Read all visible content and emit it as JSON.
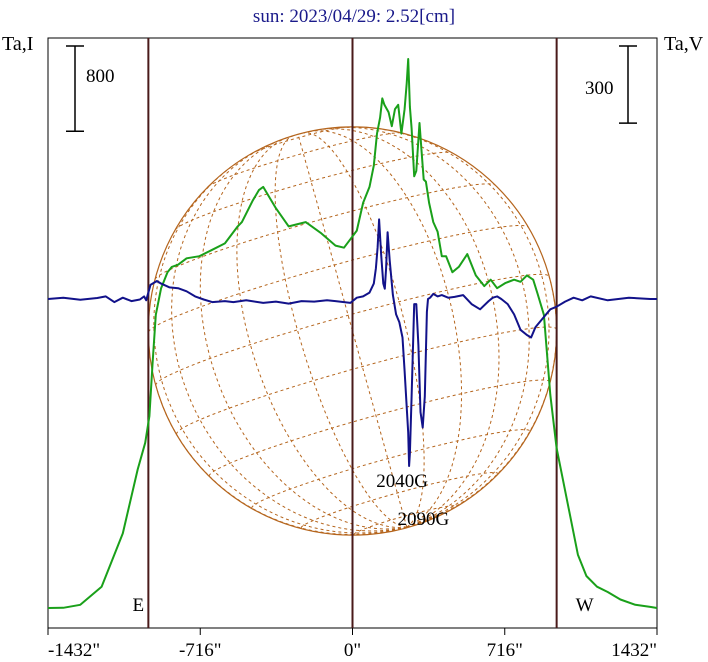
{
  "chart_data": {
    "type": "line",
    "title": "sun: 2023/04/29: 2.52[cm]",
    "left_label": "Ta,I",
    "right_label": "Ta,V",
    "xlim": [
      -1432,
      1432
    ],
    "x_ticks": [
      -1432,
      -716,
      0,
      716,
      1432
    ],
    "x_tick_labels": [
      "-1432\"",
      "-716\"",
      "0\"",
      "716\"",
      "1432\""
    ],
    "limb_markers": [
      {
        "label": "E",
        "x": -960
      },
      {
        "label": "W",
        "x": 960
      }
    ],
    "center_marker_x": 0,
    "scale_bars": [
      {
        "axis": "left",
        "label": "800",
        "value": 800
      },
      {
        "axis": "right",
        "label": "300",
        "value": 300
      }
    ],
    "disk": {
      "radius_arcsec": 960,
      "color": "#b5651d"
    },
    "annotations": [
      {
        "text": "2040G",
        "x": 290
      },
      {
        "text": "2090G",
        "x": 390
      }
    ],
    "series": [
      {
        "name": "Ta,I",
        "color": "#1aa01a",
        "x": [
          -1432,
          -1360,
          -1280,
          -1180,
          -1080,
          -1010,
          -975,
          -955,
          -940,
          -925,
          -900,
          -870,
          -850,
          -820,
          -780,
          -720,
          -660,
          -600,
          -540,
          -520,
          -470,
          -440,
          -420,
          -360,
          -300,
          -220,
          -150,
          -80,
          -40,
          -10,
          20,
          50,
          80,
          100,
          115,
          130,
          140,
          150,
          170,
          185,
          200,
          215,
          230,
          245,
          255,
          262,
          270,
          278,
          290,
          300,
          315,
          325,
          335,
          345,
          360,
          380,
          400,
          420,
          440,
          470,
          500,
          540,
          580,
          620,
          650,
          680,
          720,
          760,
          790,
          820,
          850,
          870,
          900,
          930,
          960,
          990,
          1020,
          1060,
          1100,
          1150,
          1200,
          1260,
          1330,
          1400,
          1432
        ],
        "values": [
          0,
          2,
          30,
          200,
          700,
          1300,
          1550,
          1800,
          2300,
          2750,
          3000,
          3150,
          3200,
          3220,
          3280,
          3300,
          3360,
          3420,
          3580,
          3620,
          3820,
          3920,
          3950,
          3750,
          3580,
          3620,
          3520,
          3400,
          3380,
          3460,
          3540,
          3800,
          3950,
          4150,
          4450,
          4600,
          4780,
          4720,
          4650,
          4520,
          4680,
          4720,
          4450,
          4680,
          4920,
          5150,
          4700,
          4500,
          4050,
          4100,
          4550,
          4280,
          4020,
          4000,
          3800,
          3620,
          3530,
          3300,
          3300,
          3150,
          3200,
          3320,
          3120,
          3020,
          3080,
          3000,
          3050,
          3080,
          3060,
          3120,
          3080,
          2950,
          2750,
          2000,
          1500,
          1200,
          900,
          500,
          300,
          200,
          150,
          80,
          30,
          10,
          0
        ]
      },
      {
        "name": "Ta,V",
        "color": "#12128a",
        "x": [
          -1432,
          -1360,
          -1280,
          -1200,
          -1160,
          -1120,
          -1080,
          -1040,
          -1000,
          -980,
          -970,
          -950,
          -920,
          -900,
          -860,
          -820,
          -780,
          -740,
          -700,
          -660,
          -600,
          -560,
          -500,
          -420,
          -360,
          -300,
          -240,
          -180,
          -120,
          -80,
          -40,
          -10,
          20,
          50,
          80,
          100,
          110,
          118,
          125,
          135,
          145,
          152,
          158,
          165,
          175,
          190,
          205,
          220,
          235,
          245,
          255,
          262,
          266,
          270,
          278,
          290,
          300,
          310,
          320,
          330,
          340,
          350,
          355,
          365,
          380,
          400,
          420,
          450,
          480,
          520,
          560,
          600,
          640,
          660,
          680,
          700,
          730,
          760,
          790,
          820,
          840,
          860,
          900,
          930,
          960,
          1000,
          1040,
          1080,
          1120,
          1200,
          1300,
          1400,
          1432
        ],
        "values": [
          0,
          5,
          -3,
          4,
          10,
          -12,
          5,
          -8,
          -2,
          10,
          -5,
          55,
          70,
          60,
          45,
          42,
          30,
          10,
          -2,
          -12,
          -8,
          -12,
          -5,
          -15,
          -10,
          -18,
          -8,
          -10,
          -5,
          -8,
          -12,
          -15,
          5,
          10,
          25,
          60,
          120,
          200,
          310,
          170,
          60,
          40,
          120,
          260,
          150,
          15,
          -60,
          -90,
          -150,
          -280,
          -420,
          -520,
          -650,
          -600,
          -380,
          -20,
          -20,
          -180,
          -440,
          -500,
          -380,
          -50,
          0,
          5,
          20,
          10,
          15,
          5,
          8,
          15,
          -20,
          -40,
          -8,
          5,
          10,
          0,
          -20,
          -60,
          -120,
          -140,
          -150,
          -110,
          -70,
          -40,
          -30,
          -10,
          5,
          -5,
          10,
          -5,
          5,
          0,
          0
        ]
      }
    ]
  }
}
